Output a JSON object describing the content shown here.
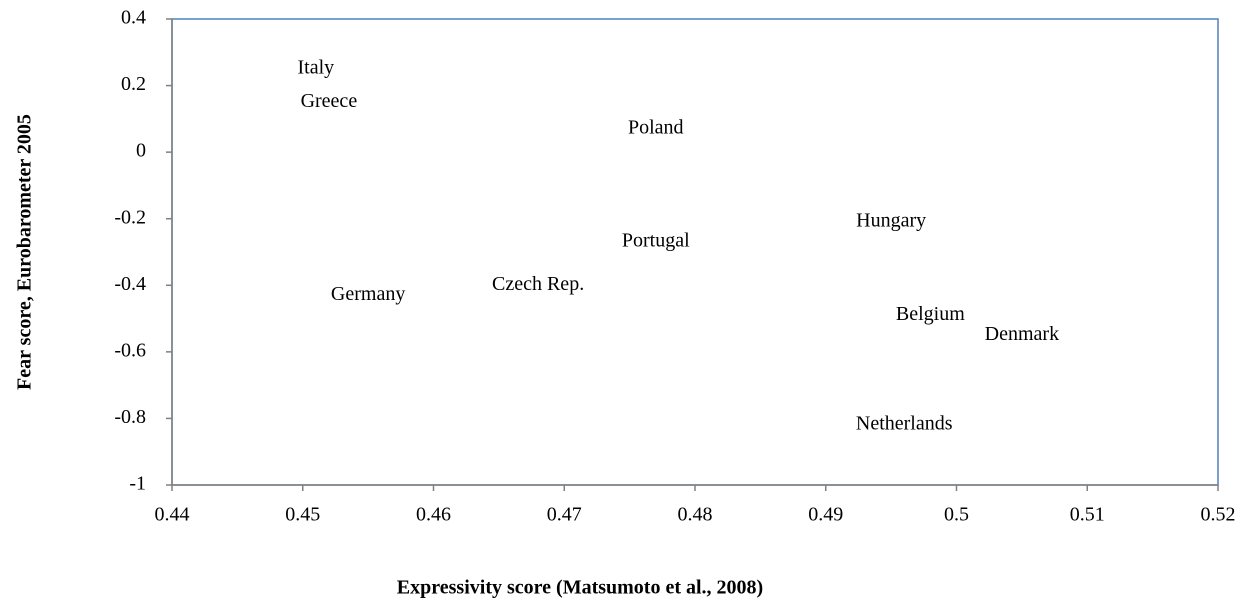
{
  "chart_data": {
    "type": "scatter",
    "x_label": "Expressivity score (Matsumoto et al., 2008)",
    "y_label": "Fear score, Eurobarometer 2005",
    "labels": [
      "Italy",
      "Greece",
      "Poland",
      "Hungary",
      "Portugal",
      "Czech Rep.",
      "Germany",
      "Belgium",
      "Denmark",
      "Netherlands"
    ],
    "x": [
      0.451,
      0.452,
      0.477,
      0.495,
      0.477,
      0.468,
      0.455,
      0.498,
      0.505,
      0.496
    ],
    "values": [
      0.25,
      0.15,
      0.07,
      -0.21,
      -0.27,
      -0.4,
      -0.43,
      -0.49,
      -0.55,
      -0.82
    ],
    "xlim": [
      0.44,
      0.52
    ],
    "xticks": [
      0.44,
      0.45,
      0.46,
      0.47,
      0.48,
      0.49,
      0.5,
      0.51,
      0.52
    ],
    "ylim": [
      -1,
      0.4
    ],
    "yticks": [
      0.4,
      0.2,
      0,
      -0.2,
      -0.4,
      -0.6,
      -0.8,
      -1
    ],
    "frame_color": "#4f81bd",
    "grid": false
  }
}
